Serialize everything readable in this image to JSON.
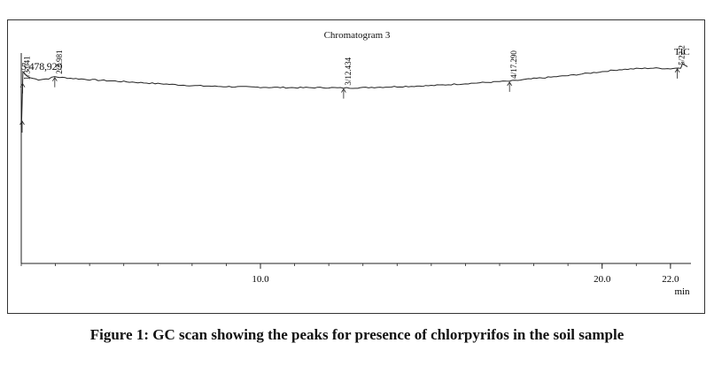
{
  "figure": {
    "caption": "Figure 1: GC scan showing the peaks for presence of chlorpyrifos in the soil sample"
  },
  "chart_data": {
    "type": "line",
    "title": "Chromatogram 3",
    "detector_label": "TIC",
    "max_intensity_label": "5,478,929",
    "xlabel": "min",
    "ylabel": "",
    "xlim": [
      3.0,
      22.6
    ],
    "ylim": [
      0,
      1
    ],
    "x_ticks": [
      10.0,
      20.0,
      22.0
    ],
    "x_tick_labels": [
      "10.0",
      "20.0",
      "22.0"
    ],
    "grid": false,
    "series": [
      {
        "x": [
          3.0,
          3.05,
          3.15,
          3.25,
          3.5,
          3.8,
          3.98,
          4.2,
          5.0,
          6.0,
          7.0,
          8.0,
          9.0,
          10.0,
          11.0,
          12.0,
          12.43,
          12.7,
          13.0,
          14.0,
          15.0,
          16.0,
          17.0,
          17.29,
          18.0,
          19.0,
          20.0,
          20.5,
          21.0,
          21.5,
          22.0,
          22.3,
          22.35,
          22.5
        ],
        "y": [
          0.65,
          0.96,
          0.94,
          0.93,
          0.92,
          0.925,
          0.935,
          0.93,
          0.92,
          0.91,
          0.9,
          0.89,
          0.885,
          0.882,
          0.88,
          0.88,
          0.878,
          0.879,
          0.88,
          0.885,
          0.89,
          0.9,
          0.91,
          0.912,
          0.925,
          0.94,
          0.96,
          0.97,
          0.975,
          0.978,
          0.975,
          0.98,
          1.0,
          0.985
        ]
      }
    ],
    "peaks": [
      {
        "label": "1/3.041",
        "x": 3.041
      },
      {
        "label": "2/3.981",
        "x": 3.981
      },
      {
        "label": "3/12.434",
        "x": 12.434
      },
      {
        "label": "4/17.290",
        "x": 17.29
      },
      {
        "label": "5/22.2",
        "x": 22.2
      }
    ]
  }
}
